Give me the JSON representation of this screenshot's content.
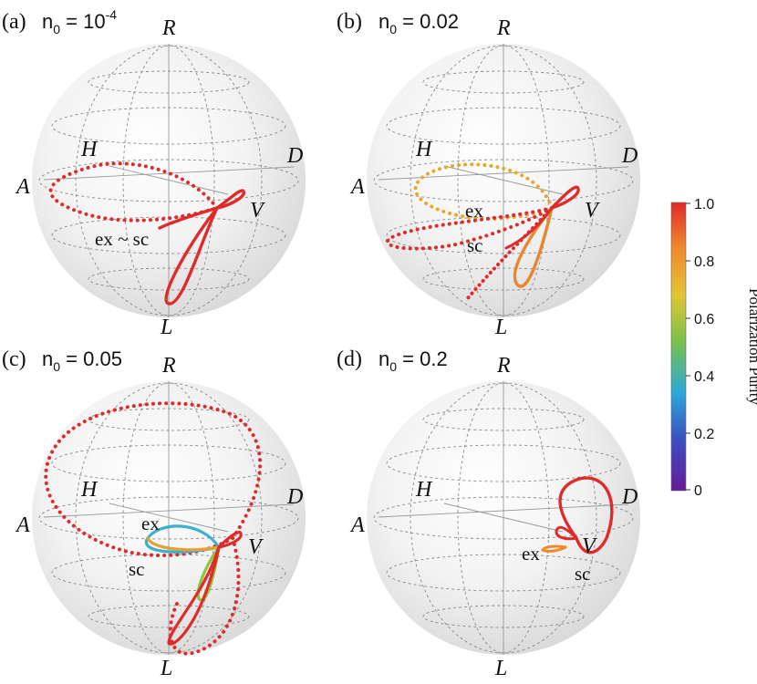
{
  "panels": [
    {
      "letter": "(a)",
      "param_prefix": "n",
      "param_sub": "0",
      "param_eq": " = 10",
      "param_sup": "-4",
      "labels": {
        "R": "R",
        "L": "L",
        "H": "H",
        "V": "V",
        "D": "D",
        "A": "A"
      },
      "annotations": [
        "ex ~ sc"
      ]
    },
    {
      "letter": "(b)",
      "param_prefix": "n",
      "param_sub": "0",
      "param_eq": " = 0.02",
      "param_sup": "",
      "labels": {
        "R": "R",
        "L": "L",
        "H": "H",
        "V": "V",
        "D": "D",
        "A": "A"
      },
      "annotations": [
        "ex",
        "sc"
      ]
    },
    {
      "letter": "(c)",
      "param_prefix": "n",
      "param_sub": "0",
      "param_eq": " = 0.05",
      "param_sup": "",
      "labels": {
        "R": "R",
        "L": "L",
        "H": "H",
        "V": "V",
        "D": "D",
        "A": "A"
      },
      "annotations": [
        "ex",
        "sc"
      ]
    },
    {
      "letter": "(d)",
      "param_prefix": "n",
      "param_sub": "0",
      "param_eq": " = 0.2",
      "param_sup": "",
      "labels": {
        "R": "R",
        "L": "L",
        "H": "H",
        "V": "V",
        "D": "D",
        "A": "A"
      },
      "annotations": [
        "ex",
        "V",
        "sc"
      ]
    }
  ],
  "colorbar": {
    "title": "Polarization Purity",
    "ticks": [
      "1.0",
      "0.8",
      "0.6",
      "0.4",
      "0.2",
      "0"
    ],
    "range": [
      0,
      1
    ],
    "colors": [
      "#6a1b9a",
      "#3b4cc0",
      "#2aa8d8",
      "#7cc24a",
      "#e3c431",
      "#f08a2c",
      "#e02b2b"
    ]
  },
  "colors": {
    "high_purity": "#e02b2b",
    "sphere_grid": "#8a8a8a"
  }
}
